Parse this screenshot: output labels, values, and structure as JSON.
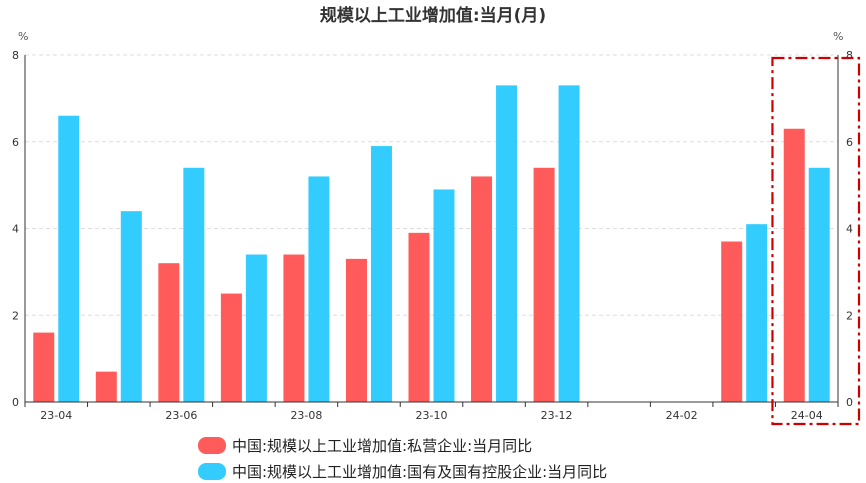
{
  "chart_data": {
    "type": "bar",
    "title": "规模以上工业增加值:当月(月)",
    "y_unit_left": "%",
    "y_unit_right": "%",
    "ylim": [
      0,
      8
    ],
    "yticks": [
      0,
      2,
      4,
      6,
      8
    ],
    "grid": true,
    "legend_position": "bottom",
    "x": [
      "23-04",
      "23-05",
      "23-06",
      "23-07",
      "23-08",
      "23-09",
      "23-10",
      "23-11",
      "23-12",
      "24-01",
      "24-02",
      "24-03",
      "24-04"
    ],
    "x_tick_labels": [
      "23-04",
      "",
      "23-06",
      "",
      "23-08",
      "",
      "23-10",
      "",
      "23-12",
      "",
      "24-02",
      "",
      "24-04"
    ],
    "series": [
      {
        "name": "中国:规模以上工业增加值:私营企业:当月同比",
        "color": "#ff5b5b",
        "values": [
          1.6,
          0.7,
          3.2,
          2.5,
          3.4,
          3.3,
          3.9,
          5.2,
          5.4,
          null,
          null,
          3.7,
          6.3
        ]
      },
      {
        "name": "中国:规模以上工业增加值:国有及国有控股企业:当月同比",
        "color": "#33ccff",
        "values": [
          6.6,
          4.4,
          5.4,
          3.4,
          5.2,
          5.9,
          4.9,
          7.3,
          7.3,
          null,
          null,
          4.1,
          5.4
        ]
      }
    ],
    "highlight": {
      "from": "24-04",
      "to": "24-04",
      "style": "dash-dot",
      "color": "#cc0000"
    }
  }
}
